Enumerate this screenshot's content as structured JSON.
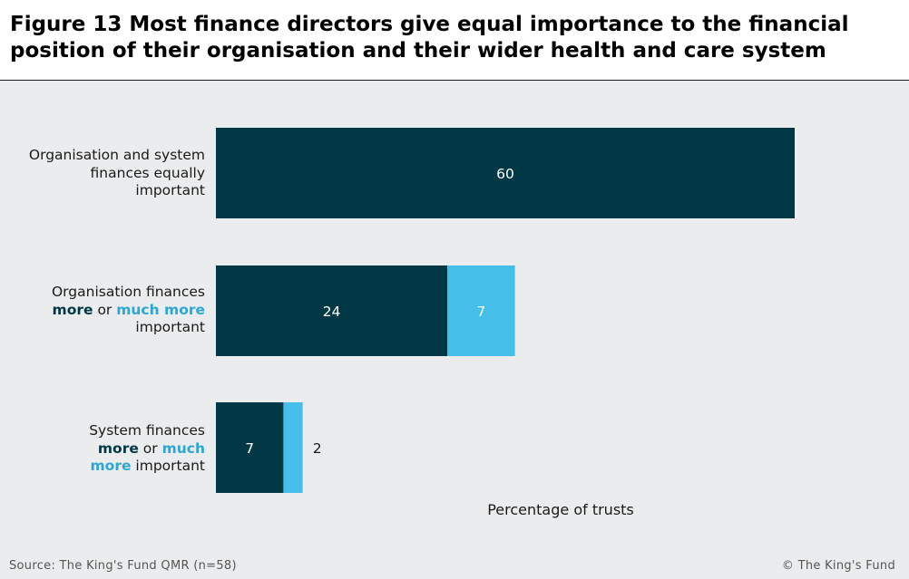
{
  "title": "Figure 13 Most finance directors give equal importance to the financial position of their organisation and their wider health and care system",
  "chart_data": {
    "type": "bar",
    "orientation": "horizontal",
    "stacked": true,
    "categories": [
      "Organisation and system finances equally important",
      "Organisation finances more or much more important",
      "System finances more or much more important"
    ],
    "series": [
      {
        "name": "more",
        "values": [
          60,
          24,
          7
        ],
        "color": "#003846"
      },
      {
        "name": "much more",
        "values": [
          0,
          7,
          2
        ],
        "color": "#45bfea"
      }
    ],
    "xlabel": "Percentage of trusts",
    "xlim": [
      0,
      60
    ],
    "grid": false
  },
  "labels": {
    "cat1": {
      "line1": "Organisation and system",
      "line2": "finances equally",
      "line3": "important"
    },
    "cat2": {
      "line1": "Organisation finances",
      "more": "more",
      "or": " or ",
      "much_more": "much more",
      "line3": "important"
    },
    "cat3": {
      "line1": "System finances",
      "more": "more",
      "or": " or ",
      "much": "much",
      "more2": "more",
      "rest": " important"
    }
  },
  "source": "Source: The King's Fund QMR (n=58)",
  "copyright": "© The King's Fund",
  "colors": {
    "dark": "#003846",
    "light": "#45bfea",
    "background": "#ebeced"
  }
}
